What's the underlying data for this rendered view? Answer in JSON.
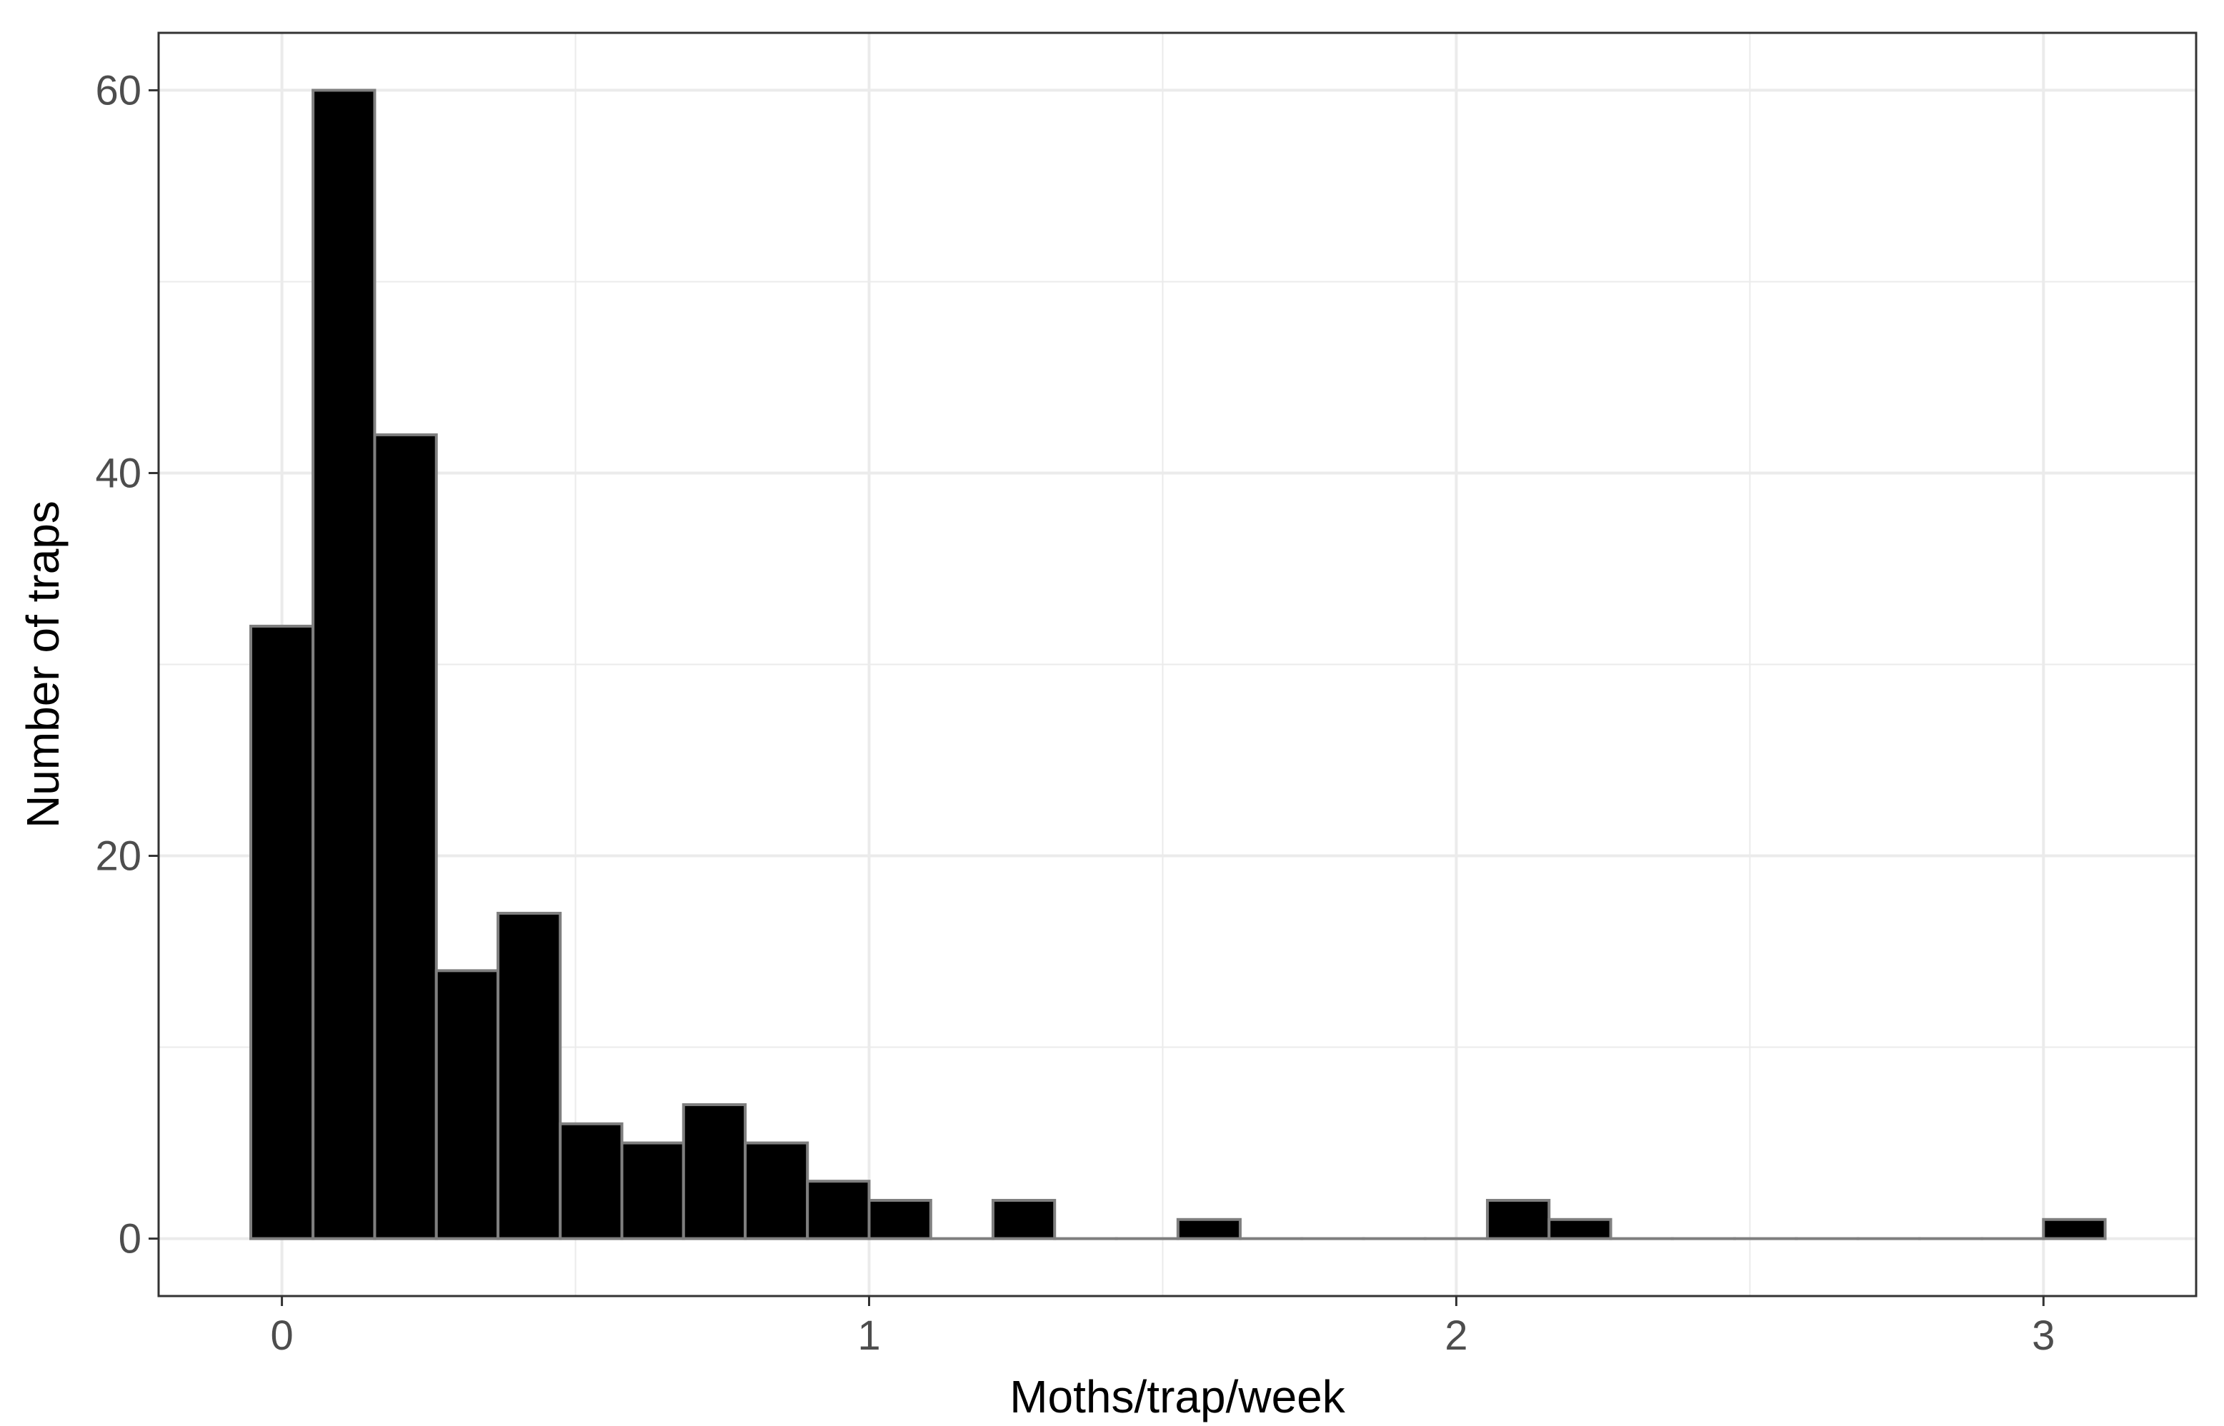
{
  "chart_data": {
    "type": "bar",
    "subtype": "histogram",
    "title": "",
    "xlabel": "Moths/trap/week",
    "ylabel": "Number of traps",
    "bin_width": 0.10526,
    "bin_start": -0.05263,
    "bins": [
      {
        "x0": -0.053,
        "x1": 0.053,
        "count": 32
      },
      {
        "x0": 0.053,
        "x1": 0.158,
        "count": 60
      },
      {
        "x0": 0.158,
        "x1": 0.263,
        "count": 42
      },
      {
        "x0": 0.263,
        "x1": 0.368,
        "count": 14
      },
      {
        "x0": 0.368,
        "x1": 0.474,
        "count": 17
      },
      {
        "x0": 0.474,
        "x1": 0.579,
        "count": 6
      },
      {
        "x0": 0.579,
        "x1": 0.684,
        "count": 5
      },
      {
        "x0": 0.684,
        "x1": 0.789,
        "count": 7
      },
      {
        "x0": 0.789,
        "x1": 0.895,
        "count": 5
      },
      {
        "x0": 0.895,
        "x1": 1.0,
        "count": 3
      },
      {
        "x0": 1.0,
        "x1": 1.105,
        "count": 2
      },
      {
        "x0": 1.105,
        "x1": 1.211,
        "count": 0
      },
      {
        "x0": 1.211,
        "x1": 1.316,
        "count": 2
      },
      {
        "x0": 1.316,
        "x1": 1.421,
        "count": 0
      },
      {
        "x0": 1.421,
        "x1": 1.526,
        "count": 0
      },
      {
        "x0": 1.526,
        "x1": 1.632,
        "count": 1
      },
      {
        "x0": 1.632,
        "x1": 1.737,
        "count": 0
      },
      {
        "x0": 1.737,
        "x1": 1.842,
        "count": 0
      },
      {
        "x0": 1.842,
        "x1": 1.947,
        "count": 0
      },
      {
        "x0": 1.947,
        "x1": 2.053,
        "count": 0
      },
      {
        "x0": 2.053,
        "x1": 2.158,
        "count": 2
      },
      {
        "x0": 2.158,
        "x1": 2.263,
        "count": 1
      },
      {
        "x0": 2.263,
        "x1": 2.368,
        "count": 0
      },
      {
        "x0": 2.368,
        "x1": 2.474,
        "count": 0
      },
      {
        "x0": 2.474,
        "x1": 2.579,
        "count": 0
      },
      {
        "x0": 2.579,
        "x1": 2.684,
        "count": 0
      },
      {
        "x0": 2.684,
        "x1": 2.789,
        "count": 0
      },
      {
        "x0": 2.789,
        "x1": 2.895,
        "count": 0
      },
      {
        "x0": 2.895,
        "x1": 3.0,
        "count": 0
      },
      {
        "x0": 3.0,
        "x1": 3.105,
        "count": 1
      }
    ],
    "xlim": [
      -0.21,
      3.26
    ],
    "ylim": [
      -3,
      63
    ],
    "xticks": [
      0,
      1,
      2,
      3
    ],
    "xtick_labels": [
      "0",
      "1",
      "2",
      "3"
    ],
    "yticks": [
      0,
      20,
      40,
      60
    ],
    "ytick_labels": [
      "0",
      "20",
      "40",
      "60"
    ],
    "x_minor_grid": [
      0.5,
      1.5,
      2.5
    ],
    "y_minor_grid": [
      10,
      30,
      50
    ],
    "grid": true,
    "legend": "none",
    "colors": {
      "bar_fill": "#000000",
      "bar_stroke": "#7f7f7f",
      "grid": "#ebebeb",
      "panel_border": "#333333",
      "tick_text": "#4d4d4d",
      "axis_title": "#000000"
    }
  }
}
